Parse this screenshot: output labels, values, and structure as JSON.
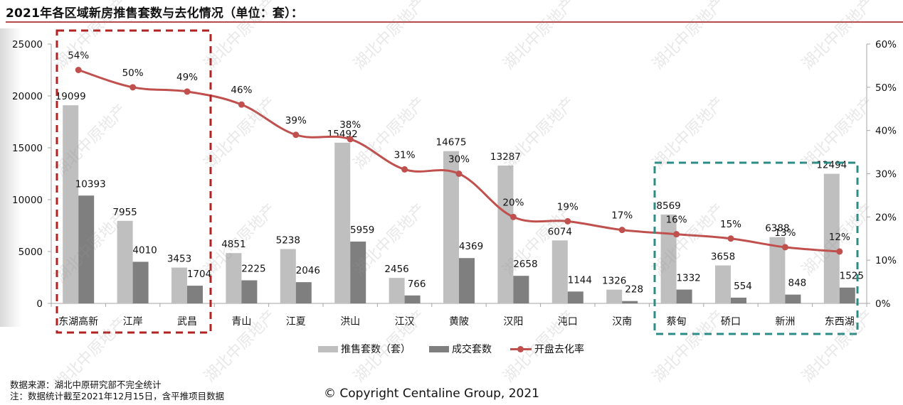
{
  "header": {
    "title": "2021年各区域新房推售套数与去化情况（单位：套）："
  },
  "chart_data": {
    "type": "bar",
    "title": "2021年各区域新房推售套数与去化情况（单位：套）：",
    "categories": [
      "东湖高新",
      "江岸",
      "武昌",
      "青山",
      "江夏",
      "洪山",
      "江汉",
      "黄陂",
      "汉阳",
      "沌口",
      "汉南",
      "蔡甸",
      "硚口",
      "新洲",
      "东西湖"
    ],
    "series": [
      {
        "name": "推售套数（套）",
        "type": "bar",
        "axis": "left",
        "color": "#bfbfbf",
        "values": [
          19099,
          7955,
          3453,
          4851,
          5238,
          15492,
          2456,
          14675,
          13287,
          6074,
          1326,
          8569,
          3658,
          6388,
          12494
        ]
      },
      {
        "name": "成交套数",
        "type": "bar",
        "axis": "left",
        "color": "#7f7f7f",
        "values": [
          10393,
          4010,
          1704,
          2225,
          2046,
          5959,
          766,
          4369,
          2658,
          1144,
          228,
          1332,
          554,
          848,
          1525
        ]
      },
      {
        "name": "开盘去化率",
        "type": "line",
        "axis": "right",
        "color": "#c0504d",
        "values": [
          54,
          50,
          49,
          46,
          39,
          38,
          31,
          30,
          20,
          19,
          17,
          16,
          15,
          13,
          12
        ],
        "labels": [
          "54%",
          "50%",
          "49%",
          "46%",
          "39%",
          "38%",
          "31%",
          "30%",
          "20%",
          "19%",
          "17%",
          "16%",
          "15%",
          "13%",
          "12%"
        ]
      }
    ],
    "left_axis": {
      "ticks": [
        "0",
        "5000",
        "10000",
        "15000",
        "20000",
        "25000"
      ],
      "range": [
        0,
        25000
      ]
    },
    "right_axis": {
      "ticks": [
        "0%",
        "10%",
        "20%",
        "30%",
        "40%",
        "50%",
        "60%"
      ],
      "range": [
        0,
        60
      ]
    },
    "xlabel": "",
    "ylabel": "",
    "grid": false,
    "legend_position": "bottom",
    "highlight_boxes": [
      {
        "color": "#b22222",
        "style": "dashed",
        "covers": [
          "东湖高新",
          "江岸",
          "武昌"
        ]
      },
      {
        "color": "#2a8c84",
        "style": "dashed",
        "covers": [
          "蔡甸",
          "硚口",
          "新洲",
          "东西湖"
        ]
      }
    ]
  },
  "legend": {
    "items": [
      {
        "label": "推售套数（套）",
        "color": "#bfbfbf"
      },
      {
        "label": "成交套数",
        "color": "#7f7f7f"
      },
      {
        "label": "开盘去化率",
        "color": "#c0504d"
      }
    ]
  },
  "footer": {
    "source": "数据来源：湖北中原研究部不完全统计",
    "note": "注：数据统计截至2021年12月15日，含平推项目数据",
    "copyright": "© Copyright  Centaline Group, 2021"
  },
  "watermark": {
    "text": "湖北中原地产"
  }
}
